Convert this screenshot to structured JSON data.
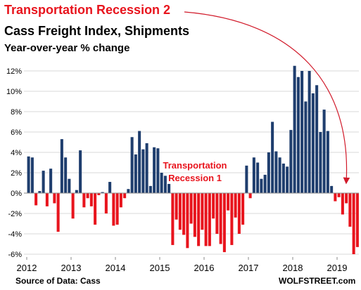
{
  "titles": {
    "line1": "Transportation  Recession 2",
    "line2": "Cass  Freight Index, Shipments",
    "line3": "Year-over-year % change"
  },
  "source": "Source of Data: Cass",
  "brand": "WOLFSTREET.com",
  "colors": {
    "positive": "#1f3e6e",
    "negative": "#e8141d",
    "annotation": "#e8141d",
    "arrow": "#d11a2a"
  },
  "chart_data": {
    "type": "bar",
    "x_start": "2012-01",
    "x_end": "2019-05",
    "x_tick_labels": [
      "2012",
      "2013",
      "2014",
      "2015",
      "2016",
      "2017",
      "2018",
      "2019"
    ],
    "y_tick_labels": [
      "12%",
      "10%",
      "8%",
      "6%",
      "4%",
      "2%",
      "0%",
      "-2%",
      "-4%",
      "-6%"
    ],
    "ylim": [
      -6,
      12.5
    ],
    "grid": "horizontal",
    "annotation": [
      "Transportation",
      "Recession 1"
    ],
    "values": [
      3.6,
      3.5,
      -1.2,
      0.2,
      2.2,
      -1.3,
      2.4,
      -1.0,
      -3.8,
      5.3,
      3.5,
      1.4,
      -2.5,
      0.3,
      4.2,
      -1.4,
      -0.5,
      -1.3,
      -3.1,
      -0.2,
      0.1,
      -2.0,
      1.1,
      -3.2,
      -3.1,
      -1.4,
      -0.5,
      0.4,
      5.5,
      3.8,
      6.1,
      4.3,
      4.9,
      0.7,
      4.5,
      4.4,
      2.0,
      1.7,
      0.9,
      -5.1,
      -2.6,
      -3.6,
      -4.1,
      -5.4,
      -3.0,
      -4.3,
      -5.2,
      -3.6,
      -5.2,
      -5.2,
      -2.5,
      -4.0,
      -5.0,
      -5.8,
      -1.7,
      -5.1,
      -2.4,
      -4.0,
      -3.1,
      2.7,
      -0.5,
      3.5,
      3.0,
      1.4,
      1.8,
      4.0,
      7.0,
      4.1,
      3.5,
      2.9,
      2.6,
      6.2,
      12.5,
      11.4,
      12.0,
      9.0,
      12.0,
      9.8,
      10.6,
      6.0,
      8.2,
      6.1,
      0.7,
      -0.8,
      -0.4,
      -2.1,
      -1.0,
      -3.3,
      -6.0,
      -5.3
    ]
  }
}
